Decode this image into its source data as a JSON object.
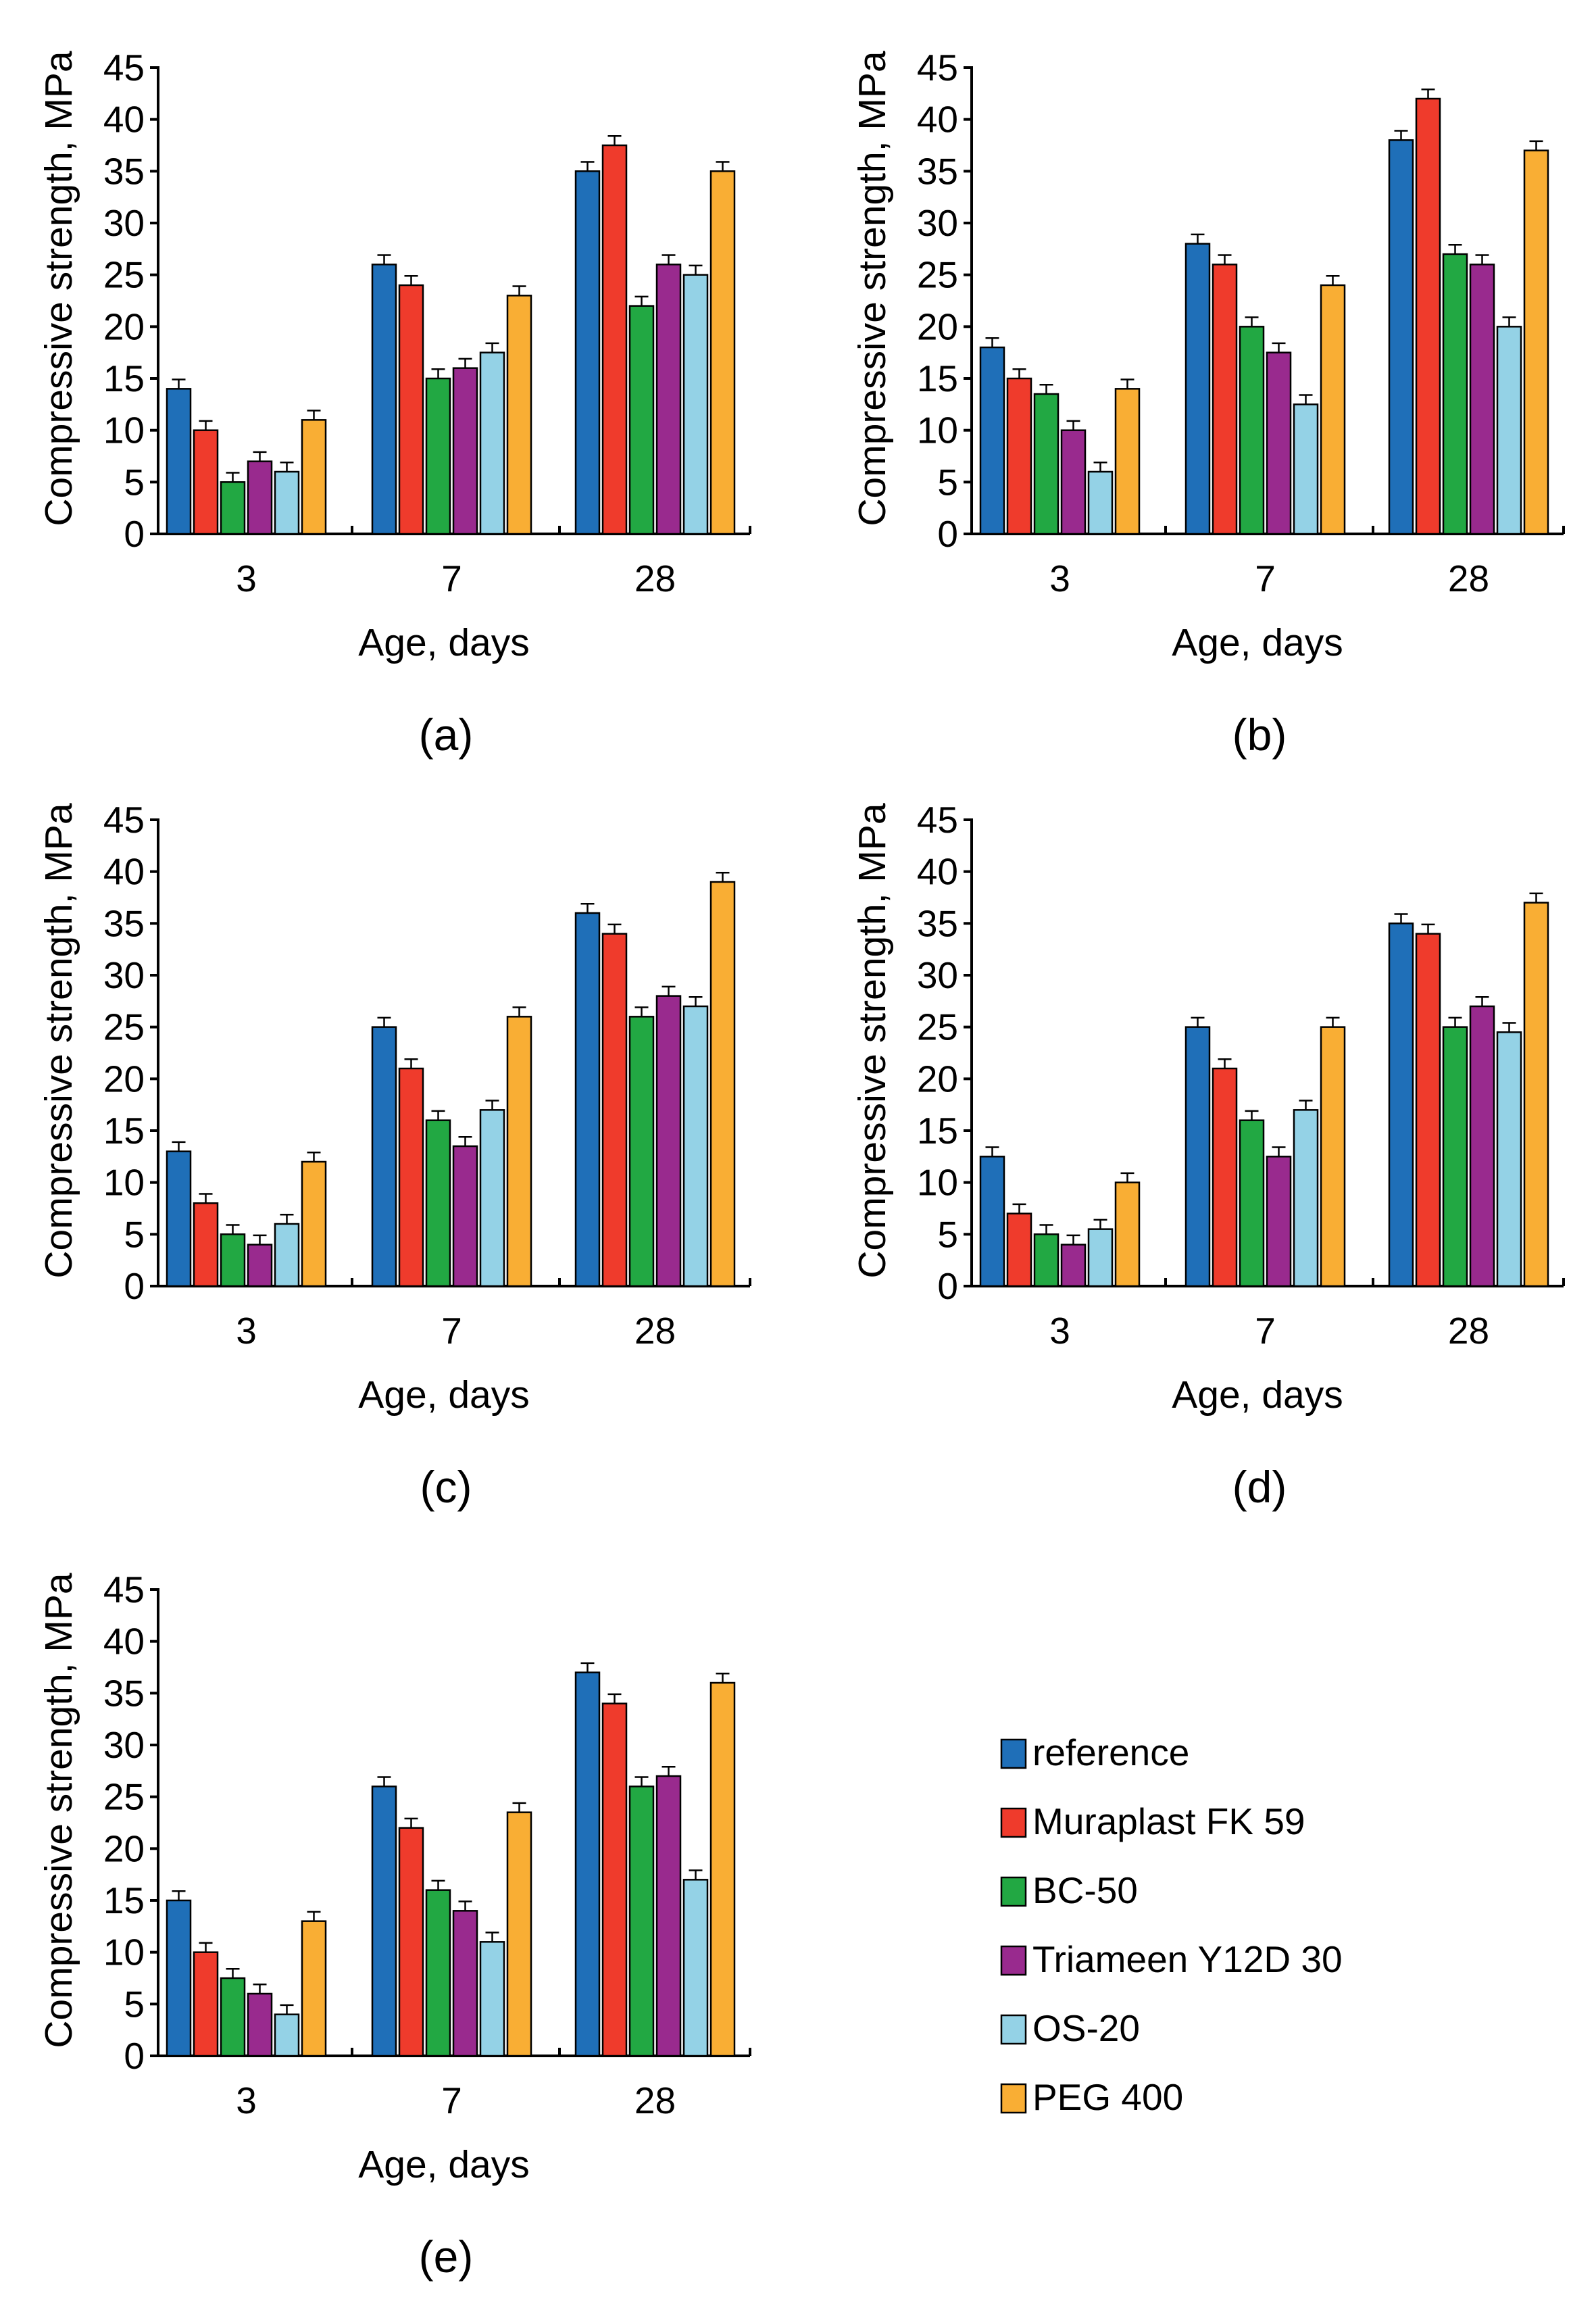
{
  "figure": {
    "series_colors": {
      "reference": "#1f6fb8",
      "Muraplast FK 59": "#ef3b2c",
      "BC-50": "#22a843",
      "Triameen Y12D 30": "#992a8e",
      "OS-20": "#94d2e6",
      "PEG 400": "#f9ae34"
    },
    "legend": {
      "entries": [
        "reference",
        "Muraplast FK 59",
        "BC-50",
        "Triameen Y12D 30",
        "OS-20",
        "PEG 400"
      ]
    }
  },
  "chart_data": [
    {
      "type": "bar",
      "panel_label": "(a)",
      "xlabel": "Age, days",
      "ylabel": "Compressive strength, MPa",
      "ylim": [
        0,
        45
      ],
      "yticks": [
        0,
        5,
        10,
        15,
        20,
        25,
        30,
        35,
        40,
        45
      ],
      "categories": [
        "3",
        "7",
        "28"
      ],
      "series": [
        {
          "name": "reference",
          "values": [
            14,
            26,
            35
          ]
        },
        {
          "name": "Muraplast FK 59",
          "values": [
            10,
            24,
            37.5
          ]
        },
        {
          "name": "BC-50",
          "values": [
            5,
            15,
            22
          ]
        },
        {
          "name": "Triameen Y12D 30",
          "values": [
            7,
            16,
            26
          ]
        },
        {
          "name": "OS-20",
          "values": [
            6,
            17.5,
            25
          ]
        },
        {
          "name": "PEG 400",
          "values": [
            11,
            23,
            35
          ]
        }
      ]
    },
    {
      "type": "bar",
      "panel_label": "(b)",
      "xlabel": "Age, days",
      "ylabel": "Compressive strength, MPa",
      "ylim": [
        0,
        45
      ],
      "yticks": [
        0,
        5,
        10,
        15,
        20,
        25,
        30,
        35,
        40,
        45
      ],
      "categories": [
        "3",
        "7",
        "28"
      ],
      "series": [
        {
          "name": "reference",
          "values": [
            18,
            28,
            38
          ]
        },
        {
          "name": "Muraplast FK 59",
          "values": [
            15,
            26,
            42
          ]
        },
        {
          "name": "BC-50",
          "values": [
            13.5,
            20,
            27
          ]
        },
        {
          "name": "Triameen Y12D 30",
          "values": [
            10,
            17.5,
            26
          ]
        },
        {
          "name": "OS-20",
          "values": [
            6,
            12.5,
            20
          ]
        },
        {
          "name": "PEG 400",
          "values": [
            14,
            24,
            37
          ]
        }
      ]
    },
    {
      "type": "bar",
      "panel_label": "(c)",
      "xlabel": "Age, days",
      "ylabel": "Compressive strength, MPa",
      "ylim": [
        0,
        45
      ],
      "yticks": [
        0,
        5,
        10,
        15,
        20,
        25,
        30,
        35,
        40,
        45
      ],
      "categories": [
        "3",
        "7",
        "28"
      ],
      "series": [
        {
          "name": "reference",
          "values": [
            13,
            25,
            36
          ]
        },
        {
          "name": "Muraplast FK 59",
          "values": [
            8,
            21,
            34
          ]
        },
        {
          "name": "BC-50",
          "values": [
            5,
            16,
            26
          ]
        },
        {
          "name": "Triameen Y12D 30",
          "values": [
            4,
            13.5,
            28
          ]
        },
        {
          "name": "OS-20",
          "values": [
            6,
            17,
            27
          ]
        },
        {
          "name": "PEG 400",
          "values": [
            12,
            26,
            39
          ]
        }
      ]
    },
    {
      "type": "bar",
      "panel_label": "(d)",
      "xlabel": "Age, days",
      "ylabel": "Compressive strength, MPa",
      "ylim": [
        0,
        45
      ],
      "yticks": [
        0,
        5,
        10,
        15,
        20,
        25,
        30,
        35,
        40,
        45
      ],
      "categories": [
        "3",
        "7",
        "28"
      ],
      "series": [
        {
          "name": "reference",
          "values": [
            12.5,
            25,
            35
          ]
        },
        {
          "name": "Muraplast FK 59",
          "values": [
            7,
            21,
            34
          ]
        },
        {
          "name": "BC-50",
          "values": [
            5,
            16,
            25
          ]
        },
        {
          "name": "Triameen Y12D 30",
          "values": [
            4,
            12.5,
            27
          ]
        },
        {
          "name": "OS-20",
          "values": [
            5.5,
            17,
            24.5
          ]
        },
        {
          "name": "PEG 400",
          "values": [
            10,
            25,
            37
          ]
        }
      ]
    },
    {
      "type": "bar",
      "panel_label": "(e)",
      "xlabel": "Age, days",
      "ylabel": "Compressive strength, MPa",
      "ylim": [
        0,
        45
      ],
      "yticks": [
        0,
        5,
        10,
        15,
        20,
        25,
        30,
        35,
        40,
        45
      ],
      "categories": [
        "3",
        "7",
        "28"
      ],
      "series": [
        {
          "name": "reference",
          "values": [
            15,
            26,
            37
          ]
        },
        {
          "name": "Muraplast FK 59",
          "values": [
            10,
            22,
            34
          ]
        },
        {
          "name": "BC-50",
          "values": [
            7.5,
            16,
            26
          ]
        },
        {
          "name": "Triameen Y12D 30",
          "values": [
            6,
            14,
            27
          ]
        },
        {
          "name": "OS-20",
          "values": [
            4,
            11,
            17
          ]
        },
        {
          "name": "PEG 400",
          "values": [
            13,
            23.5,
            36
          ]
        }
      ]
    }
  ]
}
